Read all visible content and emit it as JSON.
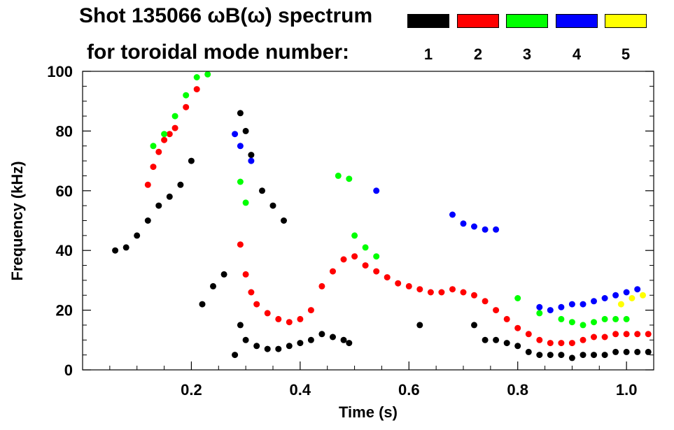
{
  "header": {
    "title_line1": "Shot 135066 ωB(ω) spectrum",
    "title_line2": "for toroidal mode number:"
  },
  "legend": [
    {
      "label": "1",
      "color": "#000000"
    },
    {
      "label": "2",
      "color": "#ff0000"
    },
    {
      "label": "3",
      "color": "#00ff00"
    },
    {
      "label": "4",
      "color": "#0000ff"
    },
    {
      "label": "5",
      "color": "#ffff00"
    }
  ],
  "chart_data": {
    "type": "scatter",
    "title": "Shot 135066 ωB(ω) spectrum",
    "xlabel": "Time (s)",
    "ylabel": "Frequency (kHz)",
    "xlim": [
      0.0,
      1.05
    ],
    "ylim": [
      0,
      100
    ],
    "xticks": [
      "0.2",
      "0.4",
      "0.6",
      "0.8",
      "1.0"
    ],
    "yticks": [
      "0",
      "20",
      "40",
      "60",
      "80",
      "100"
    ],
    "grid": false,
    "series": [
      {
        "name": "n=1",
        "color": "#000000",
        "points": [
          [
            0.06,
            40
          ],
          [
            0.08,
            41
          ],
          [
            0.1,
            45
          ],
          [
            0.12,
            50
          ],
          [
            0.14,
            55
          ],
          [
            0.16,
            58
          ],
          [
            0.18,
            62
          ],
          [
            0.2,
            70
          ],
          [
            0.22,
            22
          ],
          [
            0.24,
            28
          ],
          [
            0.26,
            32
          ],
          [
            0.28,
            5
          ],
          [
            0.29,
            86
          ],
          [
            0.3,
            80
          ],
          [
            0.31,
            72
          ],
          [
            0.33,
            60
          ],
          [
            0.35,
            55
          ],
          [
            0.37,
            50
          ],
          [
            0.29,
            15
          ],
          [
            0.3,
            10
          ],
          [
            0.32,
            8
          ],
          [
            0.34,
            7
          ],
          [
            0.36,
            7
          ],
          [
            0.38,
            8
          ],
          [
            0.4,
            9
          ],
          [
            0.42,
            10
          ],
          [
            0.44,
            12
          ],
          [
            0.46,
            11
          ],
          [
            0.48,
            10
          ],
          [
            0.49,
            9
          ],
          [
            0.62,
            15
          ],
          [
            0.72,
            15
          ],
          [
            0.74,
            10
          ],
          [
            0.76,
            10
          ],
          [
            0.78,
            9
          ],
          [
            0.8,
            8
          ],
          [
            0.82,
            6
          ],
          [
            0.84,
            5
          ],
          [
            0.86,
            5
          ],
          [
            0.88,
            5
          ],
          [
            0.9,
            4
          ],
          [
            0.92,
            5
          ],
          [
            0.94,
            5
          ],
          [
            0.96,
            5
          ],
          [
            0.98,
            6
          ],
          [
            1.0,
            6
          ],
          [
            1.02,
            6
          ],
          [
            1.04,
            6
          ]
        ]
      },
      {
        "name": "n=2",
        "color": "#ff0000",
        "points": [
          [
            0.12,
            62
          ],
          [
            0.13,
            68
          ],
          [
            0.14,
            73
          ],
          [
            0.15,
            77
          ],
          [
            0.16,
            79
          ],
          [
            0.17,
            81
          ],
          [
            0.19,
            88
          ],
          [
            0.21,
            94
          ],
          [
            0.29,
            42
          ],
          [
            0.3,
            32
          ],
          [
            0.31,
            26
          ],
          [
            0.32,
            22
          ],
          [
            0.34,
            19
          ],
          [
            0.36,
            17
          ],
          [
            0.38,
            16
          ],
          [
            0.4,
            17
          ],
          [
            0.42,
            20
          ],
          [
            0.44,
            28
          ],
          [
            0.46,
            33
          ],
          [
            0.48,
            37
          ],
          [
            0.5,
            38
          ],
          [
            0.52,
            35
          ],
          [
            0.54,
            33
          ],
          [
            0.56,
            31
          ],
          [
            0.58,
            29
          ],
          [
            0.6,
            28
          ],
          [
            0.62,
            27
          ],
          [
            0.64,
            26
          ],
          [
            0.66,
            26
          ],
          [
            0.68,
            27
          ],
          [
            0.7,
            26
          ],
          [
            0.72,
            25
          ],
          [
            0.74,
            23
          ],
          [
            0.76,
            20
          ],
          [
            0.78,
            17
          ],
          [
            0.8,
            14
          ],
          [
            0.82,
            12
          ],
          [
            0.84,
            10
          ],
          [
            0.86,
            9
          ],
          [
            0.88,
            9
          ],
          [
            0.9,
            9
          ],
          [
            0.92,
            10
          ],
          [
            0.94,
            11
          ],
          [
            0.96,
            11
          ],
          [
            0.98,
            12
          ],
          [
            1.0,
            12
          ],
          [
            1.02,
            12
          ],
          [
            1.04,
            12
          ]
        ]
      },
      {
        "name": "n=3",
        "color": "#00ff00",
        "points": [
          [
            0.13,
            75
          ],
          [
            0.15,
            79
          ],
          [
            0.17,
            85
          ],
          [
            0.19,
            92
          ],
          [
            0.21,
            98
          ],
          [
            0.23,
            99
          ],
          [
            0.29,
            63
          ],
          [
            0.3,
            56
          ],
          [
            0.47,
            65
          ],
          [
            0.49,
            64
          ],
          [
            0.5,
            45
          ],
          [
            0.52,
            41
          ],
          [
            0.54,
            38
          ],
          [
            0.8,
            24
          ],
          [
            0.84,
            19
          ],
          [
            0.88,
            17
          ],
          [
            0.9,
            16
          ],
          [
            0.92,
            15
          ],
          [
            0.94,
            16
          ],
          [
            0.96,
            17
          ],
          [
            0.98,
            17
          ],
          [
            1.0,
            17
          ]
        ]
      },
      {
        "name": "n=4",
        "color": "#0000ff",
        "points": [
          [
            0.28,
            79
          ],
          [
            0.29,
            75
          ],
          [
            0.31,
            70
          ],
          [
            0.54,
            60
          ],
          [
            0.68,
            52
          ],
          [
            0.7,
            49
          ],
          [
            0.72,
            48
          ],
          [
            0.74,
            47
          ],
          [
            0.76,
            47
          ],
          [
            0.84,
            21
          ],
          [
            0.86,
            20
          ],
          [
            0.88,
            21
          ],
          [
            0.9,
            22
          ],
          [
            0.92,
            22
          ],
          [
            0.94,
            23
          ],
          [
            0.96,
            24
          ],
          [
            0.98,
            25
          ],
          [
            1.0,
            26
          ],
          [
            1.02,
            27
          ]
        ]
      },
      {
        "name": "n=5",
        "color": "#ffff00",
        "points": [
          [
            0.99,
            22
          ],
          [
            1.01,
            24
          ],
          [
            1.03,
            25
          ]
        ]
      }
    ]
  }
}
